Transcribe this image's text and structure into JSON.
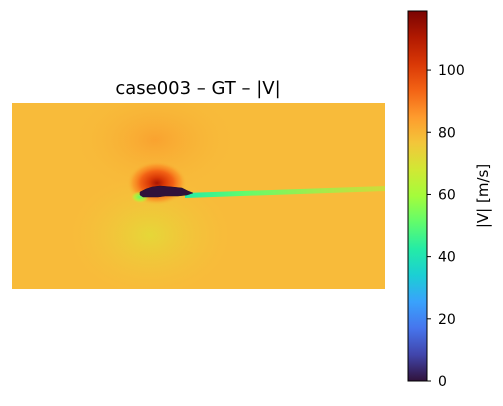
{
  "chart_data": {
    "type": "heatmap",
    "title": "case003 – GT – |V|",
    "colorbar": {
      "label": "|V| [m/s]",
      "range": [
        0,
        119
      ],
      "ticks": [
        "0",
        "20",
        "40",
        "60",
        "80",
        "100"
      ],
      "tick_values": [
        0,
        20,
        40,
        60,
        80,
        100
      ],
      "colormap": "turbo"
    },
    "field": {
      "freestream_value": 82,
      "peak_value_above_body": 115,
      "min_value_body": 0,
      "wake_value": 60,
      "low_speed_front_value": 60,
      "axes_visible": false
    },
    "colors": {
      "freestream": "#f8bb3a",
      "high": "#c22402",
      "peak": "#7a0403",
      "body": "#30123b",
      "wake": "#64fd6a"
    }
  }
}
